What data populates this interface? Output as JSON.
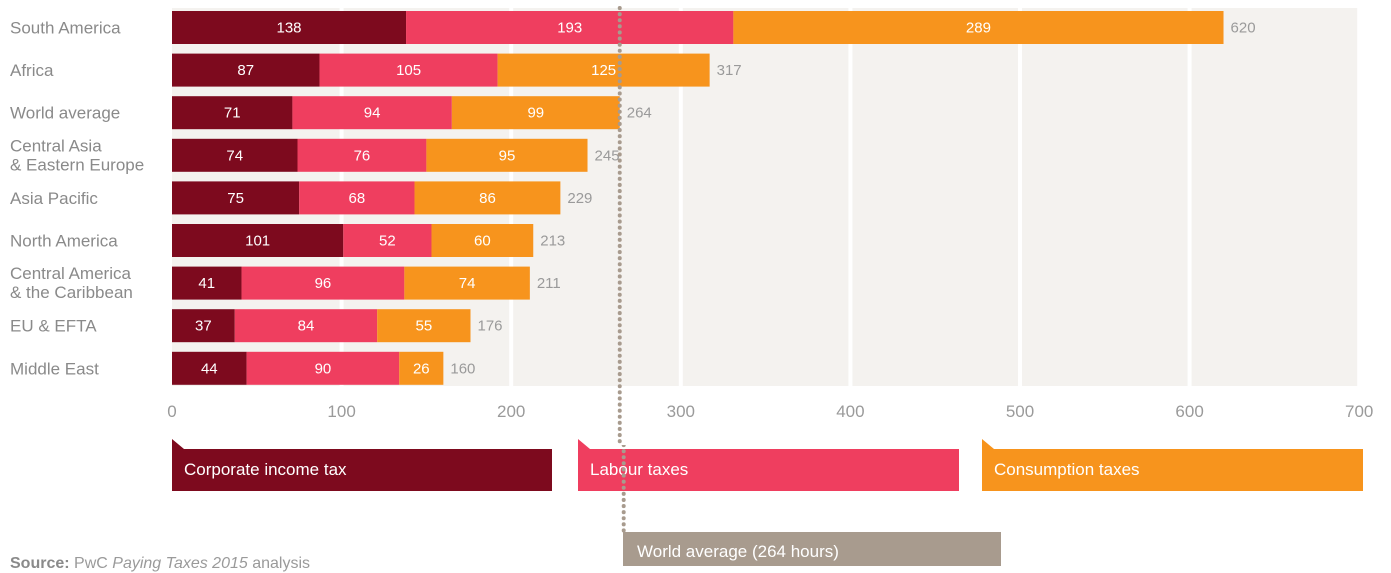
{
  "chart_data": {
    "type": "bar",
    "orientation": "horizontal",
    "stacked": true,
    "categories": [
      "South America",
      "Africa",
      "World average",
      "Central Asia\n& Eastern Europe",
      "Asia Pacific",
      "North America",
      "Central America\n& the Caribbean",
      "EU & EFTA",
      "Middle East"
    ],
    "series": [
      {
        "name": "Corporate income tax",
        "color": "#7d0a1e",
        "values": [
          138,
          87,
          71,
          74,
          75,
          101,
          41,
          37,
          44
        ]
      },
      {
        "name": "Labour taxes",
        "color": "#ef3e5f",
        "values": [
          193,
          105,
          94,
          76,
          68,
          52,
          96,
          84,
          90
        ]
      },
      {
        "name": "Consumption taxes",
        "color": "#f7941d",
        "values": [
          289,
          125,
          99,
          95,
          86,
          60,
          74,
          55,
          26
        ]
      }
    ],
    "totals": [
      620,
      317,
      264,
      245,
      229,
      213,
      211,
      176,
      160
    ],
    "xlim": [
      0,
      700
    ],
    "xticks": [
      0,
      100,
      200,
      300,
      400,
      500,
      600,
      700
    ],
    "reference_line": {
      "value": 264,
      "label": "World average (264 hours)",
      "color": "#a89b8e"
    },
    "grid": true,
    "legend_position": "bottom"
  },
  "source": {
    "prefix": "Source:",
    "text_before": "PwC ",
    "italic": "Paying Taxes 2015",
    "text_after": " analysis"
  }
}
